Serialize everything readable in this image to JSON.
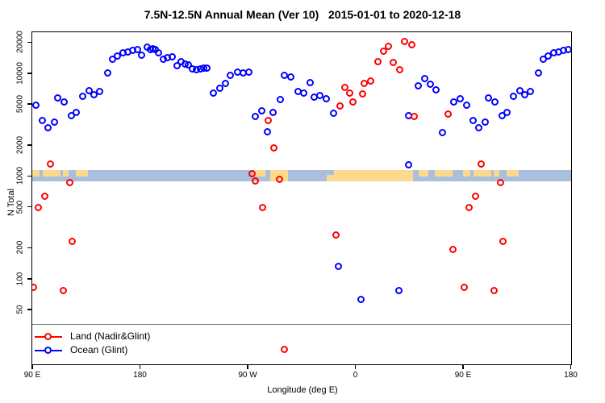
{
  "title": "7.5N-12.5N Annual Mean (Ver 10)   2015-01-01 to 2020-12-18",
  "chart_data": {
    "type": "scatter",
    "title": "7.5N-12.5N Annual Mean (Ver 10)   2015-01-01 to 2020-12-18",
    "xlabel": "Longitude (deg E)",
    "ylabel": "N Total",
    "x_axis": {
      "range_deg": [
        90,
        540.6
      ],
      "note": "axis spans 450 deg: 90E to 180 to 90W to 0 to 90E to 180; first 90 deg of data repeats at the end",
      "ticks": [
        {
          "deg": 90,
          "label": "90 E"
        },
        {
          "deg": 180,
          "label": "180"
        },
        {
          "deg": 270,
          "label": "90 W"
        },
        {
          "deg": 360,
          "label": "0"
        },
        {
          "deg": 450,
          "label": "90 E"
        },
        {
          "deg": 540,
          "label": "180"
        }
      ],
      "grid": false
    },
    "y_axis": {
      "scale": "log",
      "ticks": [
        50,
        100,
        200,
        500,
        1000,
        2000,
        5000,
        10000,
        20000
      ],
      "top_value": 23000,
      "bottom_value": 14,
      "grid": false
    },
    "legend": {
      "position": "bottom-left",
      "items": [
        {
          "label": "Land (Nadir&Glint)",
          "color": "#FF0000"
        },
        {
          "label": "Ocean (Glint)",
          "color": "#0000FF"
        }
      ]
    },
    "reference_line": {
      "value": 36,
      "color": "#7D7D7D"
    },
    "surface_band": {
      "center_value": 1000,
      "ocean_color": "#A9BFDD",
      "land_color": "#FCD98C",
      "land_segments": [
        {
          "from": 90.7,
          "to": 96.7,
          "style": "top"
        },
        {
          "from": 99.4,
          "to": 114.3,
          "style": "top"
        },
        {
          "from": 116.3,
          "to": 121.0,
          "style": "top"
        },
        {
          "from": 127.1,
          "to": 137.2,
          "style": "top"
        },
        {
          "from": 275.4,
          "to": 285.5,
          "style": "top"
        },
        {
          "from": 289.6,
          "to": 304.4,
          "style": "full"
        },
        {
          "from": 336.7,
          "to": 342.8,
          "style": "bottom"
        },
        {
          "from": 342.8,
          "to": 408.3,
          "style": "full"
        },
        {
          "from": 413.0,
          "to": 421.7,
          "style": "top"
        },
        {
          "from": 427.1,
          "to": 441.9,
          "style": "top"
        },
        {
          "from": 450.7,
          "to": 456.7,
          "style": "top"
        },
        {
          "from": 459.4,
          "to": 474.3,
          "style": "top"
        },
        {
          "from": 476.3,
          "to": 481.0,
          "style": "top"
        },
        {
          "from": 487.1,
          "to": 497.2,
          "style": "top"
        }
      ]
    },
    "series": [
      {
        "name": "Land (Nadir&Glint)",
        "color": "#FF0000",
        "points_repeat_90_180": [
          [
            92.0,
            81
          ],
          [
            96.0,
            480
          ],
          [
            101.5,
            620
          ],
          [
            106.3,
            1270
          ],
          [
            117.0,
            75
          ],
          [
            122.4,
            840
          ],
          [
            124.5,
            225
          ]
        ],
        "points": [
          [
            274.7,
            1025
          ],
          [
            277.4,
            880
          ],
          [
            283.5,
            480
          ],
          [
            288.2,
            3370
          ],
          [
            293.0,
            1830
          ],
          [
            297.7,
            900
          ],
          [
            301.7,
            20
          ],
          [
            344.8,
            260
          ],
          [
            348.2,
            4670
          ],
          [
            352.3,
            7080
          ],
          [
            356.3,
            6230
          ],
          [
            359.0,
            5100
          ],
          [
            367.1,
            6120
          ],
          [
            368.4,
            7740
          ],
          [
            373.8,
            8170
          ],
          [
            379.9,
            12600
          ],
          [
            384.6,
            15900
          ],
          [
            388.6,
            17800
          ],
          [
            392.7,
            12400
          ],
          [
            398.1,
            10500
          ],
          [
            402.1,
            19800
          ],
          [
            408.2,
            18400
          ],
          [
            410.3,
            3690
          ],
          [
            438.6,
            3950
          ],
          [
            442.6,
            187
          ]
        ]
      },
      {
        "name": "Ocean (Glint)",
        "color": "#0000FF",
        "points_repeat_90_180": [
          [
            94.0,
            4750
          ],
          [
            99.4,
            3370
          ],
          [
            104.1,
            2870
          ],
          [
            109.5,
            3250
          ],
          [
            112.2,
            5580
          ],
          [
            117.6,
            5110
          ],
          [
            123.7,
            3770
          ],
          [
            127.8,
            4040
          ],
          [
            133.2,
            5790
          ],
          [
            138.6,
            6560
          ],
          [
            142.6,
            6030
          ],
          [
            147.3,
            6450
          ],
          [
            154.1,
            9770
          ],
          [
            158.1,
            13300
          ],
          [
            162.2,
            14500
          ],
          [
            166.9,
            15400
          ],
          [
            170.9,
            15700
          ],
          [
            175.0,
            16300
          ],
          [
            179.0,
            16600
          ]
        ],
        "points": [
          [
            182.4,
            14600
          ],
          [
            187.1,
            17500
          ],
          [
            189.8,
            16600
          ],
          [
            191.8,
            16900
          ],
          [
            193.8,
            16600
          ],
          [
            196.5,
            15400
          ],
          [
            200.6,
            13300
          ],
          [
            203.9,
            13800
          ],
          [
            208.0,
            14100
          ],
          [
            212.0,
            11500
          ],
          [
            215.4,
            12600
          ],
          [
            218.8,
            11900
          ],
          [
            221.5,
            11700
          ],
          [
            224.8,
            10700
          ],
          [
            228.2,
            10500
          ],
          [
            231.6,
            10700
          ],
          [
            234.3,
            10900
          ],
          [
            237.0,
            10900
          ],
          [
            242.4,
            6230
          ],
          [
            247.8,
            6940
          ],
          [
            252.5,
            7740
          ],
          [
            256.5,
            9270
          ],
          [
            262.6,
            9940
          ],
          [
            267.3,
            9770
          ],
          [
            272.0,
            9940
          ],
          [
            277.4,
            3690
          ],
          [
            282.8,
            4190
          ],
          [
            287.5,
            2620
          ],
          [
            292.3,
            4040
          ],
          [
            298.3,
            5390
          ],
          [
            301.7,
            9270
          ],
          [
            307.1,
            8940
          ],
          [
            313.2,
            6450
          ],
          [
            317.9,
            6230
          ],
          [
            323.3,
            7870
          ],
          [
            326.6,
            5690
          ],
          [
            331.4,
            5890
          ],
          [
            336.7,
            5480
          ],
          [
            342.8,
            3960
          ],
          [
            346.8,
            128
          ],
          [
            365.7,
            62
          ],
          [
            397.4,
            75
          ],
          [
            405.5,
            3770
          ],
          [
            405.5,
            1250
          ],
          [
            413.6,
            7330
          ],
          [
            419.0,
            8620
          ],
          [
            423.7,
            7590
          ],
          [
            428.4,
            6700
          ],
          [
            433.8,
            2570
          ],
          [
            443.2,
            5110
          ],
          [
            448.6,
            5480
          ]
        ]
      }
    ]
  }
}
